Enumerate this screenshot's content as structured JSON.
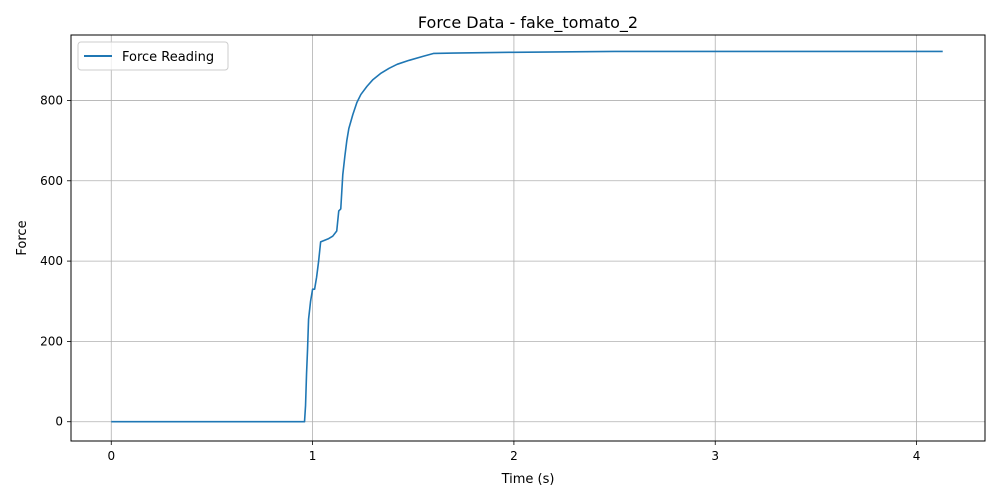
{
  "chart_data": {
    "type": "line",
    "title": "Force Data - fake_tomato_2",
    "xlabel": "Time (s)",
    "ylabel": "Force",
    "xlim": [
      -0.2,
      4.34
    ],
    "ylim": [
      -48,
      963
    ],
    "xticks": [
      0,
      1,
      2,
      3,
      4
    ],
    "yticks": [
      0,
      200,
      400,
      600,
      800
    ],
    "grid": true,
    "legend": "top-left",
    "series": [
      {
        "name": "Force Reading",
        "color": "#1f77b4",
        "x": [
          0,
          0.5,
          0.96,
          0.965,
          0.97,
          0.975,
          0.98,
          0.99,
          1.0,
          1.01,
          1.02,
          1.03,
          1.04,
          1.06,
          1.08,
          1.1,
          1.12,
          1.13,
          1.14,
          1.15,
          1.16,
          1.17,
          1.18,
          1.2,
          1.22,
          1.24,
          1.27,
          1.3,
          1.34,
          1.38,
          1.42,
          1.48,
          1.55,
          1.6,
          1.7,
          2.0,
          2.5,
          3.0,
          3.5,
          4.0,
          4.13
        ],
        "y": [
          0,
          0,
          0,
          40,
          120,
          180,
          255,
          300,
          330,
          330,
          360,
          400,
          448,
          452,
          456,
          462,
          475,
          525,
          530,
          615,
          660,
          700,
          730,
          765,
          795,
          815,
          835,
          852,
          868,
          880,
          890,
          900,
          910,
          917,
          918,
          920,
          922,
          922,
          922,
          922,
          922
        ]
      }
    ]
  }
}
